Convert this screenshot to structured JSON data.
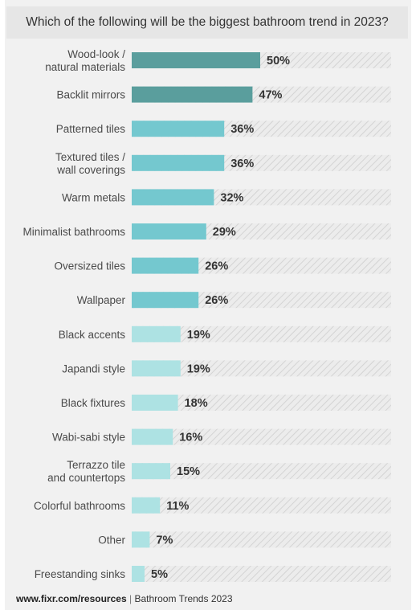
{
  "chart_data": {
    "type": "bar",
    "orientation": "horizontal",
    "title": "Which of the following will be the biggest bathroom trend in 2023?",
    "categories": [
      "Wood-look /\nnatural materials",
      "Backlit mirrors",
      "Patterned tiles",
      "Textured tiles /\nwall coverings",
      "Warm metals",
      "Minimalist bathrooms",
      "Oversized tiles",
      "Wallpaper",
      "Black accents",
      "Japandi style",
      "Black fixtures",
      "Wabi-sabi style",
      "Terrazzo tile\nand countertops",
      "Colorful bathrooms",
      "Other",
      "Freestanding sinks"
    ],
    "values": [
      50,
      47,
      36,
      36,
      32,
      29,
      26,
      26,
      19,
      19,
      18,
      16,
      15,
      11,
      7,
      5
    ],
    "value_labels": [
      "50%",
      "47%",
      "36%",
      "36%",
      "32%",
      "29%",
      "26%",
      "26%",
      "19%",
      "19%",
      "18%",
      "16%",
      "15%",
      "11%",
      "7%",
      "5%"
    ],
    "xlim": [
      0,
      100
    ],
    "unit": "%",
    "grid": false,
    "colors": {
      "dark": "#5a9e9d",
      "medium": "#74c8cf",
      "light": "#ade2e3",
      "track": "#e9e9e9",
      "hatch": "#d6d6d6"
    },
    "color_tiers": [
      "dark",
      "dark",
      "medium",
      "medium",
      "medium",
      "medium",
      "medium",
      "medium",
      "light",
      "light",
      "light",
      "light",
      "light",
      "light",
      "light",
      "light"
    ]
  },
  "footer": {
    "url": "www.fixr.com/resources",
    "separator": "|",
    "text": "Bathroom Trends 2023"
  }
}
